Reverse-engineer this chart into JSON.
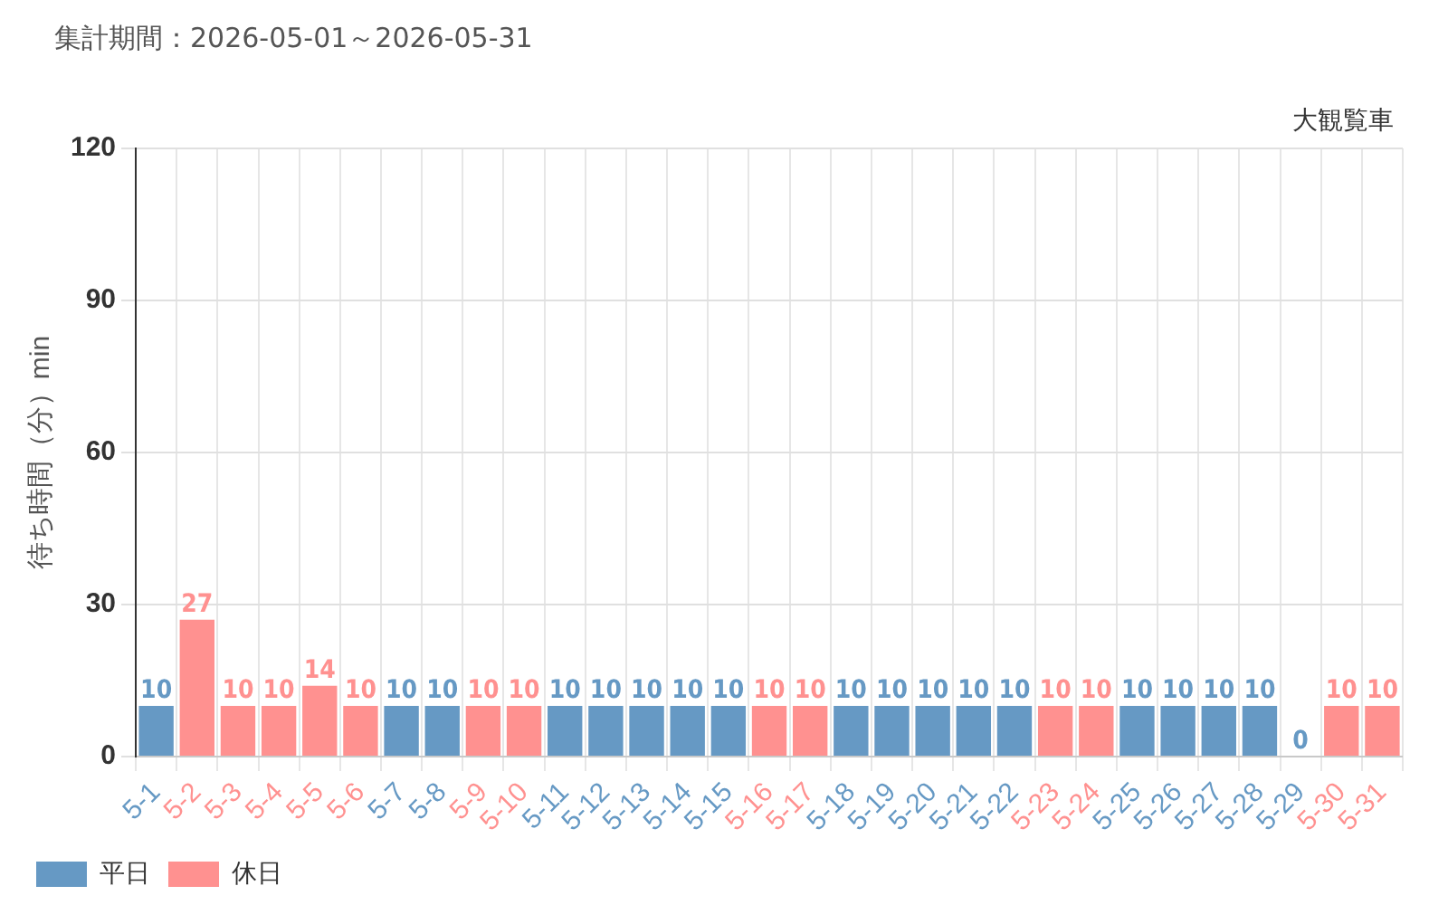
{
  "chart_data": {
    "type": "bar",
    "title": "集計期間：2026-05-01～2026-05-31",
    "subtitle": "大観覧車",
    "ylabel": "待ち時間（分）min",
    "categories": [
      "5-1",
      "5-2",
      "5-3",
      "5-4",
      "5-5",
      "5-6",
      "5-7",
      "5-8",
      "5-9",
      "5-10",
      "5-11",
      "5-12",
      "5-13",
      "5-14",
      "5-15",
      "5-16",
      "5-17",
      "5-18",
      "5-19",
      "5-20",
      "5-21",
      "5-22",
      "5-23",
      "5-24",
      "5-25",
      "5-26",
      "5-27",
      "5-28",
      "5-29",
      "5-30",
      "5-31"
    ],
    "series": [
      {
        "name": "平日",
        "color": "#6699c4",
        "values": [
          10,
          null,
          null,
          null,
          null,
          null,
          10,
          10,
          null,
          null,
          10,
          10,
          10,
          10,
          10,
          null,
          null,
          10,
          10,
          10,
          10,
          10,
          null,
          null,
          10,
          10,
          10,
          10,
          0,
          null,
          null
        ]
      },
      {
        "name": "休日",
        "color": "#ff9190",
        "values": [
          null,
          27,
          10,
          10,
          14,
          10,
          null,
          null,
          10,
          10,
          null,
          null,
          null,
          null,
          null,
          10,
          10,
          null,
          null,
          null,
          null,
          null,
          10,
          10,
          null,
          null,
          null,
          null,
          null,
          10,
          10
        ]
      }
    ],
    "ylim": [
      0,
      120
    ],
    "yticks": [
      0,
      30,
      60,
      90,
      120
    ],
    "grid": true,
    "legend": "bottom left",
    "data_labels": true
  }
}
